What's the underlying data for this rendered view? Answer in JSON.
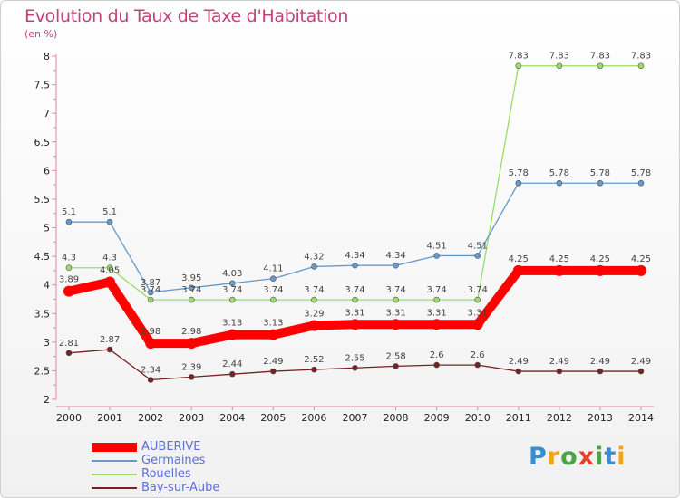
{
  "title": "Evolution du Taux de Taxe d'Habitation",
  "subtitle": "(en %)",
  "logo_text": "Proxiti",
  "chart_data": {
    "type": "line",
    "title": "Evolution du Taux de Taxe d'Habitation",
    "subtitle": "(en %)",
    "xlabel": "",
    "ylabel": "",
    "x": [
      "2000",
      "2001",
      "2002",
      "2003",
      "2004",
      "2005",
      "2006",
      "2007",
      "2008",
      "2009",
      "2010",
      "2011",
      "2012",
      "2013",
      "2014"
    ],
    "ylim": [
      2,
      8
    ],
    "yticks": [
      "2",
      "2.5",
      "3",
      "3.5",
      "4",
      "4.5",
      "5",
      "5.5",
      "6",
      "6.5",
      "7",
      "7.5",
      "8"
    ],
    "grid": false,
    "legend_position": "bottom-left",
    "series": [
      {
        "name": "AUBERIVE",
        "color": "#ff0000",
        "values": [
          3.89,
          4.05,
          2.98,
          2.98,
          3.13,
          3.13,
          3.29,
          3.31,
          3.31,
          3.31,
          3.31,
          4.25,
          4.25,
          4.25,
          4.25
        ],
        "labels": [
          "3.89",
          "4.05",
          "2.98",
          "2.98",
          "3.13",
          "3.13",
          "3.29",
          "3.31",
          "3.31",
          "3.31",
          "3.31",
          "4.25",
          "4.25",
          "4.25",
          "4.25"
        ]
      },
      {
        "name": "Germaines",
        "color": "#6699cc",
        "values": [
          5.1,
          5.1,
          3.87,
          3.95,
          4.03,
          4.11,
          4.32,
          4.34,
          4.34,
          4.51,
          4.51,
          5.78,
          5.78,
          5.78,
          5.78
        ],
        "labels": [
          "5.1",
          "5.1",
          "3.87",
          "3.95",
          "4.03",
          "4.11",
          "4.32",
          "4.34",
          "4.34",
          "4.51",
          "4.51",
          "5.78",
          "5.78",
          "5.78",
          "5.78"
        ]
      },
      {
        "name": "Rouelles",
        "color": "#99dd66",
        "values": [
          4.3,
          4.3,
          3.74,
          3.74,
          3.74,
          3.74,
          3.74,
          3.74,
          3.74,
          3.74,
          3.74,
          7.83,
          7.83,
          7.83,
          7.83
        ],
        "labels": [
          "4.3",
          "4.3",
          "3.74",
          "3.74",
          "3.74",
          "3.74",
          "3.74",
          "3.74",
          "3.74",
          "3.74",
          "3.74",
          "7.83",
          "7.83",
          "7.83",
          "7.83"
        ]
      },
      {
        "name": "Bay-sur-Aube",
        "color": "#772222",
        "values": [
          2.81,
          2.87,
          2.34,
          2.39,
          2.44,
          2.49,
          2.52,
          2.55,
          2.58,
          2.6,
          2.6,
          2.49,
          2.49,
          2.49,
          2.49
        ],
        "labels": [
          "2.81",
          "2.87",
          "2.34",
          "2.39",
          "2.44",
          "2.49",
          "2.52",
          "2.55",
          "2.58",
          "2.6",
          "2.6",
          "2.49",
          "2.49",
          "2.49",
          "2.49"
        ]
      }
    ]
  }
}
